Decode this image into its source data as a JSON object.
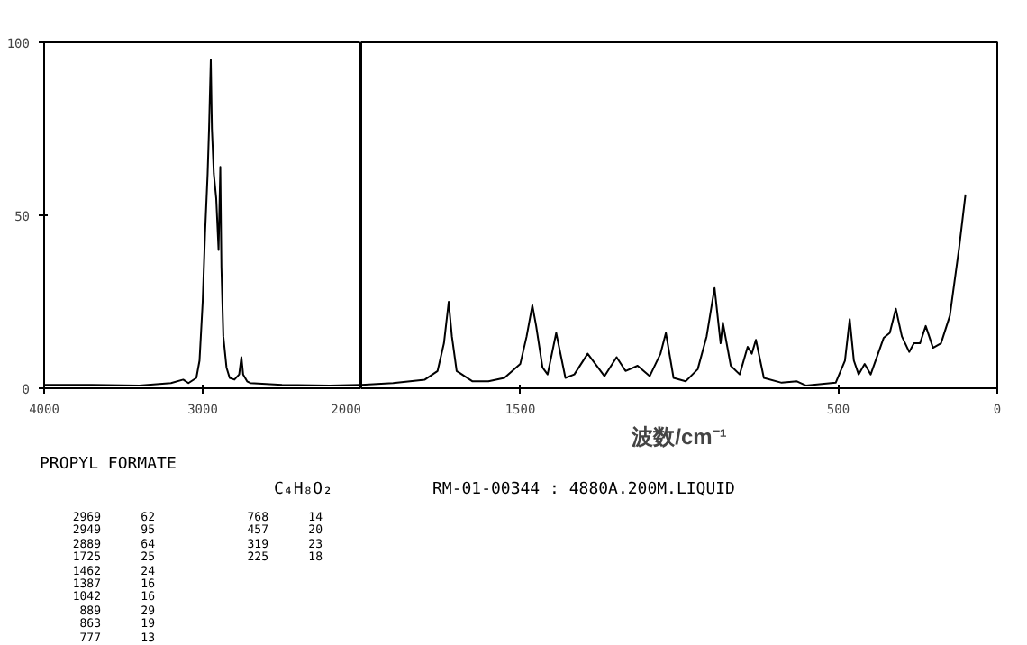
{
  "chart_data": [
    {
      "type": "line",
      "xlim": [
        4000,
        2000
      ],
      "xticks": [
        4000,
        3000,
        2000
      ],
      "ylim": [
        0,
        100
      ],
      "yticks": [
        0,
        50,
        100
      ],
      "series": [
        {
          "color": "#000000",
          "x": [
            4000,
            3700,
            3400,
            3200,
            3123,
            3090,
            3040,
            3020,
            3000,
            2985,
            2969,
            2960,
            2949,
            2942,
            2930,
            2915,
            2900,
            2889,
            2882,
            2870,
            2850,
            2830,
            2800,
            2770,
            2756,
            2745,
            2720,
            2700,
            2500,
            2200,
            2000
          ],
          "values": [
            1,
            1,
            0.8,
            1.5,
            2.5,
            1.5,
            3,
            8,
            25,
            45,
            62,
            75,
            95,
            75,
            62,
            55,
            40,
            64,
            35,
            15,
            6,
            3,
            2.5,
            4,
            9,
            4,
            2,
            1.5,
            1,
            0.8,
            1
          ]
        }
      ],
      "annotations": [
        "PROPYL FORMATE",
        "C₄H₈O₂",
        "RM-01-00344 : 4880A.200M.LIQUID",
        "2969 62",
        "2949 95",
        "2889 64",
        "1725 25",
        "1462 24",
        "1387 16",
        "1042 16",
        "889 29",
        "863 19",
        "777 13",
        "768 14",
        "457 20",
        "319 23",
        "225 18"
      ]
    },
    {
      "type": "line",
      "xlim": [
        2000,
        0
      ],
      "xticks": [
        1500,
        500,
        0
      ],
      "ylim": [
        0,
        100
      ],
      "yticks": [
        0,
        50,
        100
      ],
      "xlabel": "波数/cm⁻¹",
      "tick_labels": "x",
      "series": [
        {
          "color": "#000000",
          "x": [
            2000,
            1900,
            1800,
            1760,
            1740,
            1725,
            1715,
            1700,
            1650,
            1600,
            1550,
            1500,
            1480,
            1462,
            1450,
            1430,
            1414,
            1387,
            1358,
            1330,
            1288,
            1235,
            1197,
            1169,
            1131,
            1093,
            1059,
            1042,
            1018,
            980,
            942,
            914,
            889,
            876,
            870,
            863,
            838,
            810,
            785,
            772,
            759,
            734,
            678,
            630,
            602,
            508,
            479,
            464,
            451,
            436,
            417,
            398,
            357,
            338,
            319,
            300,
            277,
            262,
            243,
            225,
            202,
            177,
            149,
            120,
            100
          ],
          "values": [
            1,
            1.5,
            2.5,
            5,
            13,
            25,
            15,
            5,
            2,
            2,
            3,
            7,
            15,
            24,
            18,
            6,
            4,
            16,
            3,
            4,
            10,
            3.5,
            9,
            5,
            6.5,
            3.5,
            10,
            16,
            3,
            2,
            5.5,
            15,
            29,
            18,
            13,
            19,
            6.5,
            4,
            12,
            10,
            14,
            3,
            1.6,
            2,
            0.8,
            1.6,
            8,
            20,
            8,
            4,
            7,
            4,
            14.6,
            16,
            23,
            15,
            10.5,
            13,
            13,
            18,
            11.7,
            13,
            21,
            40.6,
            56
          ]
        }
      ]
    }
  ]
}
